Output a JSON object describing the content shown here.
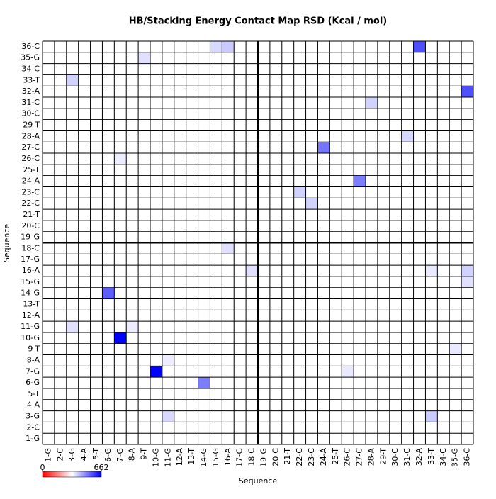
{
  "chart_data": {
    "type": "heatmap",
    "title": "HB/Stacking Energy Contact Map RSD (Kcal / mol)",
    "x_label": "Sequence",
    "y_label": "Sequence",
    "categories": [
      "1-G",
      "2-C",
      "3-G",
      "4-A",
      "5-T",
      "6-G",
      "7-G",
      "8-A",
      "9-T",
      "10-G",
      "11-G",
      "12-A",
      "13-T",
      "14-G",
      "15-G",
      "16-A",
      "17-G",
      "18-C",
      "19-G",
      "20-C",
      "21-T",
      "22-C",
      "23-C",
      "24-A",
      "25-T",
      "26-C",
      "27-C",
      "28-A",
      "29-T",
      "30-C",
      "31-C",
      "32-A",
      "33-T",
      "34-C",
      "35-G",
      "36-C"
    ],
    "zlim": [
      0,
      662
    ],
    "zticks": [
      0,
      662
    ],
    "colors": [
      "#ff0000",
      "#ffffff",
      "#0000ff"
    ],
    "cells": [
      {
        "x": "7-G",
        "y": "10-G",
        "value": 662
      },
      {
        "x": "10-G",
        "y": "7-G",
        "value": 662
      },
      {
        "x": "32-A",
        "y": "36-C",
        "value": 560
      },
      {
        "x": "36-C",
        "y": "32-A",
        "value": 560
      },
      {
        "x": "6-G",
        "y": "14-G",
        "value": 540
      },
      {
        "x": "14-G",
        "y": "6-G",
        "value": 500
      },
      {
        "x": "24-A",
        "y": "27-C",
        "value": 510
      },
      {
        "x": "27-C",
        "y": "24-A",
        "value": 500
      },
      {
        "x": "16-A",
        "y": "36-C",
        "value": 400
      },
      {
        "x": "15-G",
        "y": "36-C",
        "value": 380
      },
      {
        "x": "36-C",
        "y": "16-A",
        "value": 390
      },
      {
        "x": "36-C",
        "y": "15-G",
        "value": 370
      },
      {
        "x": "3-G",
        "y": "33-T",
        "value": 390
      },
      {
        "x": "33-T",
        "y": "3-G",
        "value": 400
      },
      {
        "x": "22-C",
        "y": "23-C",
        "value": 390
      },
      {
        "x": "23-C",
        "y": "22-C",
        "value": 390
      },
      {
        "x": "28-A",
        "y": "31-C",
        "value": 390
      },
      {
        "x": "31-C",
        "y": "28-A",
        "value": 380
      },
      {
        "x": "3-G",
        "y": "11-G",
        "value": 370
      },
      {
        "x": "11-G",
        "y": "3-G",
        "value": 380
      },
      {
        "x": "9-T",
        "y": "35-G",
        "value": 370
      },
      {
        "x": "35-G",
        "y": "9-T",
        "value": 360
      },
      {
        "x": "16-A",
        "y": "18-C",
        "value": 370
      },
      {
        "x": "18-C",
        "y": "16-A",
        "value": 370
      },
      {
        "x": "33-T",
        "y": "16-A",
        "value": 360
      },
      {
        "x": "26-C",
        "y": "7-G",
        "value": 360
      },
      {
        "x": "7-G",
        "y": "26-C",
        "value": 355
      },
      {
        "x": "11-G",
        "y": "8-A",
        "value": 355
      },
      {
        "x": "8-A",
        "y": "11-G",
        "value": 355
      }
    ]
  }
}
